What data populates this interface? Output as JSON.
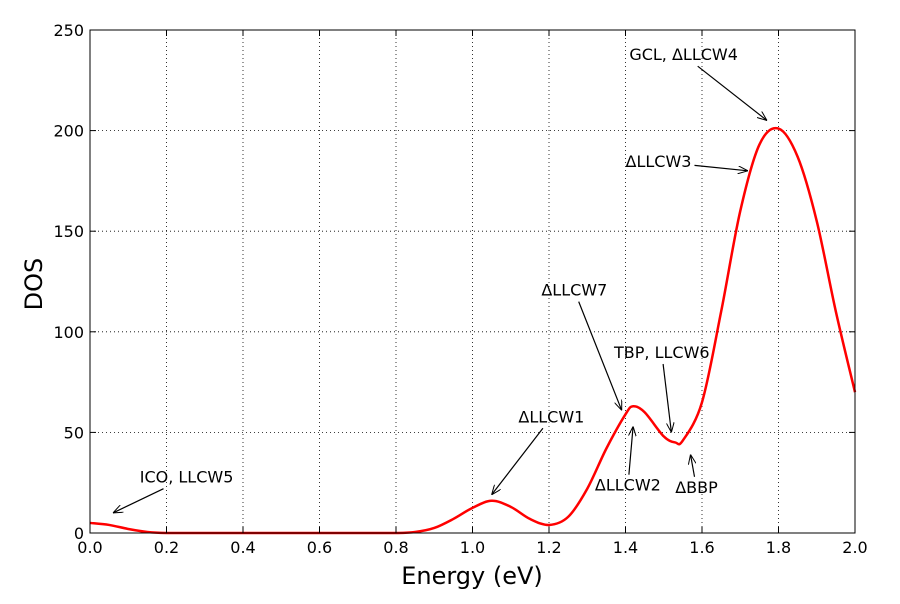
{
  "chart_data": {
    "type": "line",
    "title": "",
    "xlabel": "Energy (eV)",
    "ylabel": "DOS",
    "xlim": [
      0,
      2.0
    ],
    "ylim": [
      0,
      250
    ],
    "grid": true,
    "xticks": [
      0.0,
      0.2,
      0.4,
      0.6,
      0.8,
      1.0,
      1.2,
      1.4,
      1.6,
      1.8,
      2.0
    ],
    "xtick_labels": [
      "0.0",
      "0.2",
      "0.4",
      "0.6",
      "0.8",
      "1.0",
      "1.2",
      "1.4",
      "1.6",
      "1.8",
      "2.0"
    ],
    "yticks": [
      0,
      50,
      100,
      150,
      200,
      250
    ],
    "ytick_labels": [
      "0",
      "50",
      "100",
      "150",
      "200",
      "250"
    ],
    "series": [
      {
        "color": "#ff0000",
        "x": [
          0.0,
          0.05,
          0.1,
          0.15,
          0.2,
          0.3,
          0.4,
          0.5,
          0.6,
          0.7,
          0.8,
          0.85,
          0.9,
          0.95,
          1.0,
          1.05,
          1.1,
          1.15,
          1.2,
          1.25,
          1.3,
          1.35,
          1.4,
          1.42,
          1.45,
          1.5,
          1.53,
          1.55,
          1.6,
          1.65,
          1.7,
          1.75,
          1.8,
          1.85,
          1.9,
          1.95,
          2.0
        ],
        "y": [
          5.0,
          4.0,
          2.0,
          0.5,
          0.0,
          0.0,
          0.0,
          0.0,
          0.0,
          0.0,
          0.0,
          0.5,
          2.5,
          7.0,
          12.5,
          16.0,
          13.0,
          7.0,
          4.0,
          8.0,
          22.0,
          42.0,
          59.0,
          63.0,
          60.0,
          48.0,
          45.0,
          46.0,
          65.0,
          110.0,
          160.0,
          193.0,
          201.0,
          187.0,
          155.0,
          110.0,
          70.0
        ]
      }
    ],
    "annotations": [
      {
        "text": "ICO, LLCW5",
        "point": [
          0.06,
          10
        ],
        "text_at": [
          0.13,
          25
        ]
      },
      {
        "text": "ΔLLCW1",
        "point": [
          1.05,
          19
        ],
        "text_at": [
          1.12,
          55
        ]
      },
      {
        "text": "ΔLLCW7",
        "point": [
          1.39,
          61
        ],
        "text_at": [
          1.18,
          118
        ]
      },
      {
        "text": "TBP, LLCW6",
        "point": [
          1.52,
          50
        ],
        "text_at": [
          1.37,
          87
        ]
      },
      {
        "text": "ΔLLCW2",
        "point": [
          1.42,
          53
        ],
        "text_at": [
          1.32,
          21
        ]
      },
      {
        "text": "ΔBBP",
        "point": [
          1.57,
          39
        ],
        "text_at": [
          1.53,
          20
        ]
      },
      {
        "text": "ΔLLCW3",
        "point": [
          1.72,
          180
        ],
        "text_at": [
          1.4,
          182
        ]
      },
      {
        "text": "GCL, ΔLLCW4",
        "point": [
          1.77,
          205
        ],
        "text_at": [
          1.41,
          235
        ]
      }
    ]
  }
}
